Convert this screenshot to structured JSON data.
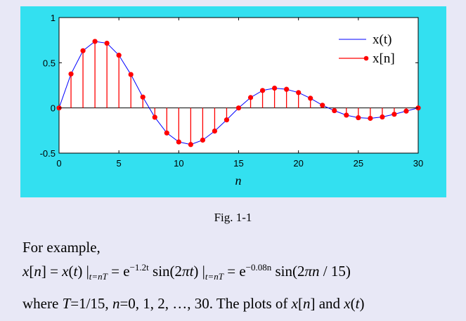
{
  "chart_data": {
    "type": "line",
    "x": [
      0,
      1,
      2,
      3,
      4,
      5,
      6,
      7,
      8,
      9,
      10,
      11,
      12,
      13,
      14,
      15,
      16,
      17,
      18,
      19,
      20,
      21,
      22,
      23,
      24,
      25,
      26,
      27,
      28,
      29,
      30
    ],
    "series": [
      {
        "name": "x(t)",
        "style": "line",
        "color": "#0000FF",
        "values": [
          0,
          0.376,
          0.633,
          0.736,
          0.716,
          0.583,
          0.37,
          0.12,
          -0.103,
          -0.277,
          -0.376,
          -0.405,
          -0.356,
          -0.256,
          -0.132,
          0,
          0.115,
          0.193,
          0.219,
          0.206,
          0.17,
          0.107,
          0.03,
          -0.03,
          -0.08,
          -0.108,
          -0.115,
          -0.1,
          -0.07,
          -0.035,
          0
        ]
      },
      {
        "name": "x[n]",
        "style": "stem",
        "color": "#FF0000",
        "values": [
          0,
          0.376,
          0.633,
          0.736,
          0.716,
          0.583,
          0.37,
          0.12,
          -0.103,
          -0.277,
          -0.376,
          -0.405,
          -0.356,
          -0.256,
          -0.132,
          0,
          0.115,
          0.193,
          0.219,
          0.206,
          0.17,
          0.107,
          0.03,
          -0.03,
          -0.08,
          -0.108,
          -0.115,
          -0.1,
          -0.07,
          -0.035,
          0
        ]
      }
    ],
    "xlabel": "n",
    "ylabel": "",
    "xlim": [
      0,
      30
    ],
    "ylim": [
      -0.5,
      1
    ],
    "xticks": [
      "0",
      "5",
      "10",
      "15",
      "20",
      "25",
      "30"
    ],
    "yticks": [
      "-0.5",
      "0",
      "0.5",
      "1"
    ],
    "legend_position": "top-right",
    "grid": false,
    "background": "#33E0F0"
  },
  "caption": "Fig. 1-1",
  "text": {
    "intro": "For example,",
    "formula": {
      "p1": "x",
      "p2": "[",
      "p3": "n",
      "p4": "] = ",
      "p5": "x",
      "p6": "(",
      "p7": "t",
      "p8": ") |",
      "sub1": "t=nT",
      "p9": " = e",
      "sup1": "−1.2t",
      "p10": " sin(2",
      "p11": "πt",
      "p12": ") |",
      "sub2": "t=nT",
      "p13": " = e",
      "sup2": "−0.08n",
      "p14": " sin(2",
      "p15": "πn",
      "p16": " / 15)"
    },
    "where": {
      "w1": "where ",
      "w2": "T",
      "w3": "=1/15, ",
      "w4": "n",
      "w5": "=0, 1, 2, …, 30. The plots of ",
      "w6": "x",
      "w7": "[",
      "w8": "n",
      "w9": "] and ",
      "w10": "x",
      "w11": "(",
      "w12": "t",
      "w13": ")"
    }
  }
}
